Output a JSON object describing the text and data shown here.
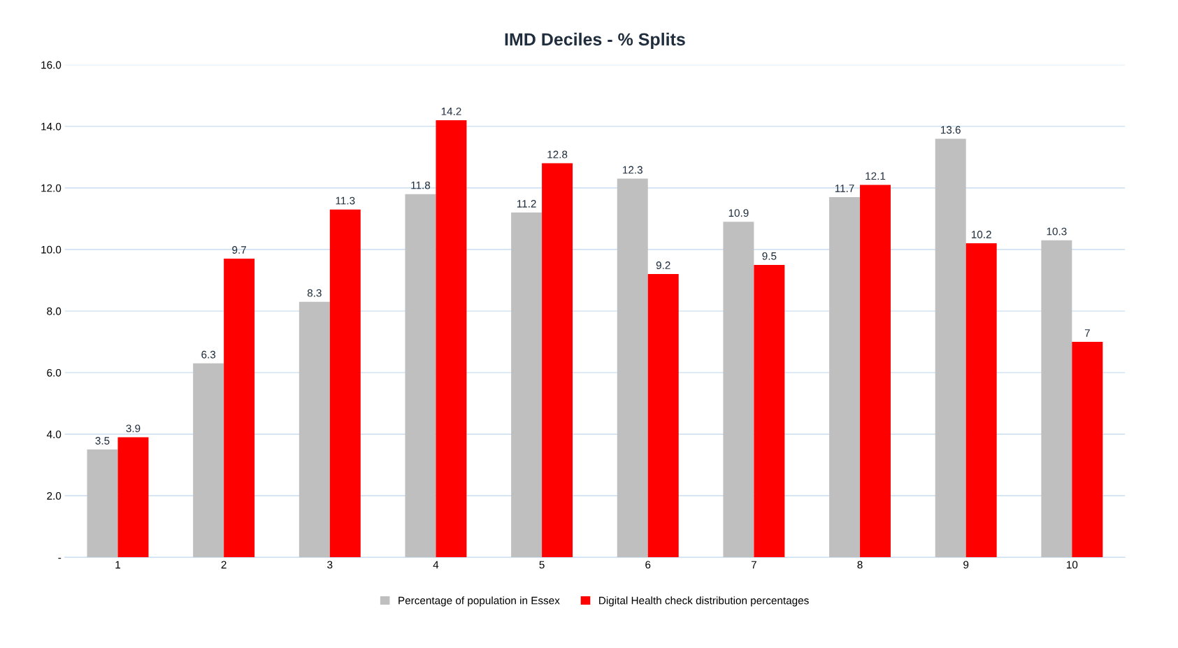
{
  "chart_data": {
    "type": "bar",
    "title": "IMD Deciles - % Splits",
    "categories": [
      "1",
      "2",
      "3",
      "4",
      "5",
      "6",
      "7",
      "8",
      "9",
      "10"
    ],
    "series": [
      {
        "name": "Percentage of population in Essex",
        "color": "#bfbfbf",
        "values": [
          3.5,
          6.3,
          8.3,
          11.8,
          11.2,
          12.3,
          10.9,
          11.7,
          13.6,
          10.3
        ]
      },
      {
        "name": "Digital Health check distribution percentages",
        "color": "#ff0000",
        "values": [
          3.9,
          9.7,
          11.3,
          14.2,
          12.8,
          9.2,
          9.5,
          12.1,
          10.2,
          7
        ]
      }
    ],
    "ylim": [
      0,
      16
    ],
    "yticks": [
      {
        "value": 0,
        "label": "-"
      },
      {
        "value": 2,
        "label": "2.0"
      },
      {
        "value": 4,
        "label": "4.0"
      },
      {
        "value": 6,
        "label": "6.0"
      },
      {
        "value": 8,
        "label": "8.0"
      },
      {
        "value": 10,
        "label": "10.0"
      },
      {
        "value": 12,
        "label": "12.0"
      },
      {
        "value": 14,
        "label": "14.0"
      },
      {
        "value": 16,
        "label": "16.0"
      }
    ],
    "grid": "y",
    "legend": "bottom",
    "data_labels": true
  }
}
